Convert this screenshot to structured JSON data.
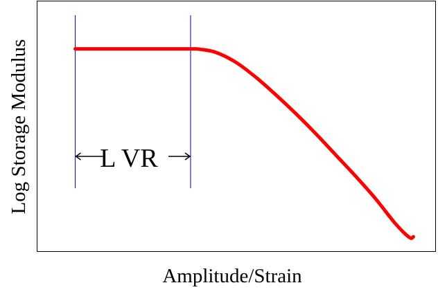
{
  "chart_data": {
    "type": "line",
    "title": "",
    "xlabel": "Amplitude/Strain",
    "ylabel": "Log Storage Modulus",
    "xscale": "log",
    "yscale": "log",
    "xlim": [
      0,
      100
    ],
    "ylim": [
      0,
      100
    ],
    "ticks": "none",
    "grid": false,
    "legend": "none",
    "series": [
      {
        "color": "#ff0000",
        "x": [
          9.5,
          20,
          30,
          38.5,
          41,
          45,
          50,
          55,
          60,
          65,
          70,
          75,
          80,
          85,
          90,
          93.5,
          94.5
        ],
        "y": [
          81,
          81,
          81,
          81,
          80.8,
          79.5,
          75.5,
          69.5,
          62.5,
          55,
          47,
          38.5,
          30,
          21,
          11,
          5.5,
          5.8
        ]
      }
    ],
    "vlines": [
      {
        "x": 9.5,
        "color": "#0000cc"
      },
      {
        "x": 38.5,
        "color": "#0000cc"
      }
    ],
    "annotations": [
      {
        "text": "L VR",
        "x_range": [
          9.5,
          38.5
        ]
      }
    ]
  }
}
